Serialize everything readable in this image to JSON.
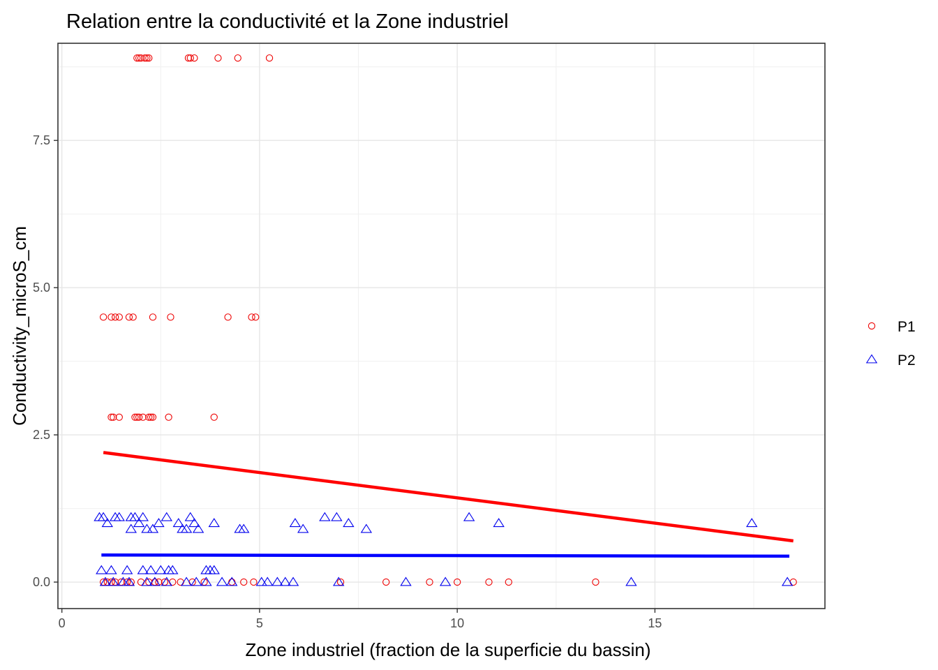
{
  "chart_data": {
    "type": "scatter",
    "title": "Relation entre la conductivité et la Zone industriel",
    "xlabel": "Zone industriel (fraction de la superficie du bassin)",
    "ylabel": "Conductivity_microS_cm",
    "xlim": [
      -0.1,
      19.3
    ],
    "ylim": [
      -0.45,
      9.15
    ],
    "x_ticks": [
      0,
      5,
      10,
      15
    ],
    "x_tick_labels": [
      "0",
      "5",
      "10",
      "15"
    ],
    "y_ticks": [
      0.0,
      2.5,
      5.0,
      7.5
    ],
    "y_tick_labels": [
      "0.0",
      "2.5",
      "5.0",
      "7.5"
    ],
    "grid": true,
    "legend_position": "right",
    "series": [
      {
        "name": "P1",
        "color": "#ee0000",
        "marker": "circle",
        "points": [
          [
            1.9,
            8.9
          ],
          [
            1.95,
            8.9
          ],
          [
            2.0,
            8.9
          ],
          [
            2.1,
            8.9
          ],
          [
            2.15,
            8.9
          ],
          [
            2.2,
            8.9
          ],
          [
            3.2,
            8.9
          ],
          [
            3.25,
            8.9
          ],
          [
            3.35,
            8.9
          ],
          [
            3.95,
            8.9
          ],
          [
            4.45,
            8.9
          ],
          [
            5.25,
            8.9
          ],
          [
            1.05,
            4.5
          ],
          [
            1.25,
            4.5
          ],
          [
            1.35,
            4.5
          ],
          [
            1.45,
            4.5
          ],
          [
            1.7,
            4.5
          ],
          [
            1.8,
            4.5
          ],
          [
            2.3,
            4.5
          ],
          [
            2.75,
            4.5
          ],
          [
            4.2,
            4.5
          ],
          [
            4.8,
            4.5
          ],
          [
            4.9,
            4.5
          ],
          [
            1.25,
            2.8
          ],
          [
            1.3,
            2.8
          ],
          [
            1.45,
            2.8
          ],
          [
            1.85,
            2.8
          ],
          [
            1.9,
            2.8
          ],
          [
            1.95,
            2.8
          ],
          [
            2.05,
            2.8
          ],
          [
            2.2,
            2.8
          ],
          [
            2.25,
            2.8
          ],
          [
            2.3,
            2.8
          ],
          [
            2.7,
            2.8
          ],
          [
            3.85,
            2.8
          ],
          [
            1.05,
            0.0
          ],
          [
            1.15,
            0.0
          ],
          [
            1.25,
            0.0
          ],
          [
            1.35,
            0.0
          ],
          [
            1.5,
            0.0
          ],
          [
            1.65,
            0.0
          ],
          [
            1.75,
            0.0
          ],
          [
            2.0,
            0.0
          ],
          [
            2.2,
            0.0
          ],
          [
            2.35,
            0.0
          ],
          [
            2.45,
            0.0
          ],
          [
            2.6,
            0.0
          ],
          [
            2.8,
            0.0
          ],
          [
            3.0,
            0.0
          ],
          [
            3.3,
            0.0
          ],
          [
            3.6,
            0.0
          ],
          [
            4.3,
            0.0
          ],
          [
            4.6,
            0.0
          ],
          [
            4.85,
            0.0
          ],
          [
            7.05,
            0.0
          ],
          [
            8.2,
            0.0
          ],
          [
            9.3,
            0.0
          ],
          [
            10.0,
            0.0
          ],
          [
            10.8,
            0.0
          ],
          [
            11.3,
            0.0
          ],
          [
            13.5,
            0.0
          ],
          [
            18.5,
            0.0
          ]
        ],
        "fit": {
          "x": [
            1.05,
            18.5
          ],
          "y": [
            2.2,
            0.7
          ]
        }
      },
      {
        "name": "P2",
        "color": "#0000ee",
        "marker": "triangle",
        "points": [
          [
            0.95,
            1.1
          ],
          [
            1.05,
            1.1
          ],
          [
            1.15,
            1.0
          ],
          [
            1.35,
            1.1
          ],
          [
            1.45,
            1.1
          ],
          [
            1.75,
            1.1
          ],
          [
            1.85,
            1.1
          ],
          [
            2.05,
            1.1
          ],
          [
            1.75,
            0.9
          ],
          [
            1.95,
            1.0
          ],
          [
            2.15,
            0.9
          ],
          [
            2.3,
            0.9
          ],
          [
            2.45,
            1.0
          ],
          [
            2.65,
            1.1
          ],
          [
            2.95,
            1.0
          ],
          [
            3.05,
            0.9
          ],
          [
            3.15,
            0.9
          ],
          [
            3.25,
            1.1
          ],
          [
            3.35,
            1.0
          ],
          [
            3.45,
            0.9
          ],
          [
            3.85,
            1.0
          ],
          [
            4.5,
            0.9
          ],
          [
            4.6,
            0.9
          ],
          [
            5.9,
            1.0
          ],
          [
            6.1,
            0.9
          ],
          [
            6.65,
            1.1
          ],
          [
            6.95,
            1.1
          ],
          [
            7.25,
            1.0
          ],
          [
            7.7,
            0.9
          ],
          [
            10.3,
            1.1
          ],
          [
            11.05,
            1.0
          ],
          [
            17.45,
            1.0
          ],
          [
            1.0,
            0.2
          ],
          [
            1.25,
            0.2
          ],
          [
            1.65,
            0.2
          ],
          [
            2.05,
            0.2
          ],
          [
            2.25,
            0.2
          ],
          [
            2.5,
            0.2
          ],
          [
            2.7,
            0.2
          ],
          [
            2.8,
            0.2
          ],
          [
            3.65,
            0.2
          ],
          [
            3.75,
            0.2
          ],
          [
            3.85,
            0.2
          ],
          [
            1.1,
            0.0
          ],
          [
            1.3,
            0.0
          ],
          [
            1.55,
            0.0
          ],
          [
            1.7,
            0.0
          ],
          [
            2.15,
            0.0
          ],
          [
            2.35,
            0.0
          ],
          [
            2.65,
            0.0
          ],
          [
            3.15,
            0.0
          ],
          [
            3.4,
            0.0
          ],
          [
            3.65,
            0.0
          ],
          [
            4.05,
            0.0
          ],
          [
            4.3,
            0.0
          ],
          [
            5.05,
            0.0
          ],
          [
            5.2,
            0.0
          ],
          [
            5.45,
            0.0
          ],
          [
            5.65,
            0.0
          ],
          [
            5.85,
            0.0
          ],
          [
            7.0,
            0.0
          ],
          [
            8.7,
            0.0
          ],
          [
            9.7,
            0.0
          ],
          [
            14.4,
            0.0
          ],
          [
            18.35,
            0.0
          ]
        ],
        "fit": {
          "x": [
            1.0,
            18.4
          ],
          "y": [
            0.46,
            0.44
          ]
        }
      }
    ]
  }
}
